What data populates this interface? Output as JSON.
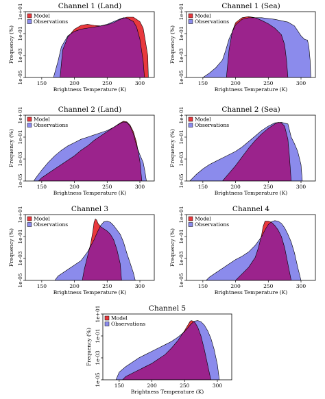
{
  "colors": {
    "model": "#e8383d",
    "observations": "#8b8bec",
    "overlap": "#9b238c",
    "outline": "#000000"
  },
  "legend_labels": [
    "Model",
    "Observations"
  ],
  "chart_data": [
    {
      "type": "area",
      "title": "Channel 1 (Land)",
      "xlabel": "Brightness Temperature (K)",
      "ylabel": "Frequency (%)",
      "xlim": [
        125,
        322
      ],
      "ylim": [
        -5,
        1
      ],
      "y_scale": "log10",
      "xticks": [
        150,
        200,
        250,
        300
      ],
      "yticks": [
        "1e-05",
        "1e-03",
        "1e-01",
        "1e+01"
      ],
      "legend": "top-left",
      "series": [
        {
          "name": "Model",
          "x": [
            178,
            182,
            190,
            200,
            210,
            220,
            230,
            240,
            250,
            260,
            270,
            280,
            290,
            300,
            305,
            308,
            312,
            313
          ],
          "log10_y": [
            -5,
            -2.5,
            -1.3,
            -0.6,
            -0.25,
            -0.15,
            -0.25,
            -0.3,
            -0.2,
            0.0,
            0.3,
            0.5,
            0.5,
            0.1,
            -0.5,
            -1.5,
            -3,
            -5
          ]
        },
        {
          "name": "Observations",
          "x": [
            168,
            175,
            180,
            190,
            200,
            210,
            220,
            230,
            240,
            250,
            260,
            270,
            275,
            280,
            290,
            295,
            300,
            305,
            307
          ],
          "log10_y": [
            -5,
            -3.5,
            -2.2,
            -1.2,
            -0.8,
            -0.6,
            -0.5,
            -0.4,
            -0.3,
            -0.15,
            0.1,
            0.35,
            0.45,
            0.42,
            0.1,
            -0.4,
            -1.5,
            -3.5,
            -5
          ]
        }
      ]
    },
    {
      "type": "area",
      "title": "Channel 1 (Sea)",
      "xlabel": "Brightness Temperature (K)",
      "ylabel": "Frequency (%)",
      "xlim": [
        125,
        322
      ],
      "ylim": [
        -5,
        1
      ],
      "y_scale": "log10",
      "xticks": [
        150,
        200,
        250,
        300
      ],
      "yticks": [
        "1e-05",
        "1e-03",
        "1e-01",
        "1e+01"
      ],
      "legend": "top-left",
      "series": [
        {
          "name": "Model",
          "x": [
            186,
            190,
            195,
            200,
            210,
            220,
            230,
            240,
            250,
            260,
            270,
            275,
            278,
            280
          ],
          "log10_y": [
            -5,
            -2.5,
            -0.8,
            0.0,
            0.45,
            0.55,
            0.45,
            0.2,
            -0.1,
            -0.5,
            -1.1,
            -2,
            -3.5,
            -5
          ]
        },
        {
          "name": "Observations",
          "x": [
            150,
            160,
            170,
            180,
            185,
            190,
            200,
            210,
            220,
            240,
            260,
            280,
            290,
            300,
            305,
            310,
            312,
            314,
            315
          ],
          "log10_y": [
            -5,
            -4.6,
            -4.1,
            -3.4,
            -2.5,
            -1.5,
            -0.2,
            0.3,
            0.45,
            0.45,
            0.3,
            0.05,
            -0.3,
            -1.2,
            -1.5,
            -1.6,
            -2.2,
            -3.5,
            -5
          ]
        }
      ]
    },
    {
      "type": "area",
      "title": "Channel 2 (Land)",
      "xlabel": "Brightness Temperature (K)",
      "ylabel": "Frequency (%)",
      "xlim": [
        125,
        322
      ],
      "ylim": [
        -5,
        1
      ],
      "y_scale": "log10",
      "xticks": [
        150,
        200,
        250,
        300
      ],
      "yticks": [
        "1e-05",
        "1e-03",
        "1e-01",
        "1e+01"
      ],
      "legend": "top-left",
      "series": [
        {
          "name": "Model",
          "x": [
            145,
            150,
            160,
            170,
            180,
            190,
            200,
            210,
            220,
            230,
            240,
            250,
            260,
            270,
            275,
            280,
            285,
            290,
            295,
            300,
            303
          ],
          "log10_y": [
            -5,
            -4.7,
            -4.3,
            -3.9,
            -3.5,
            -3.1,
            -2.7,
            -2.2,
            -1.8,
            -1.3,
            -0.9,
            -0.5,
            -0.1,
            0.3,
            0.45,
            0.4,
            0.1,
            -0.5,
            -1.5,
            -3.2,
            -5
          ]
        },
        {
          "name": "Observations",
          "x": [
            138,
            140,
            150,
            160,
            170,
            180,
            190,
            200,
            210,
            220,
            230,
            240,
            250,
            260,
            270,
            275,
            280,
            285,
            290,
            295,
            300,
            305,
            308,
            310
          ],
          "log10_y": [
            -5,
            -4.8,
            -4.0,
            -3.3,
            -2.7,
            -2.2,
            -1.8,
            -1.5,
            -1.2,
            -1.0,
            -0.8,
            -0.6,
            -0.4,
            -0.1,
            0.25,
            0.38,
            0.35,
            0.0,
            -0.7,
            -1.8,
            -2.6,
            -3.3,
            -4.2,
            -5
          ]
        }
      ]
    },
    {
      "type": "area",
      "title": "Channel 2 (Sea)",
      "xlabel": "Brightness Temperature (K)",
      "ylabel": "Frequency (%)",
      "xlim": [
        125,
        322
      ],
      "ylim": [
        -5,
        1
      ],
      "y_scale": "log10",
      "xticks": [
        150,
        200,
        250,
        300
      ],
      "yticks": [
        "1e-05",
        "1e-03",
        "1e-01",
        "1e+01"
      ],
      "legend": "top-left",
      "series": [
        {
          "name": "Model",
          "x": [
            180,
            190,
            200,
            210,
            220,
            230,
            240,
            250,
            260,
            265,
            270,
            275,
            280,
            282,
            285
          ],
          "log10_y": [
            -5,
            -4.3,
            -3.6,
            -2.8,
            -2.0,
            -1.3,
            -0.7,
            -0.2,
            0.2,
            0.35,
            0.3,
            0.0,
            -1.2,
            -2.5,
            -5
          ]
        },
        {
          "name": "Observations",
          "x": [
            130,
            135,
            140,
            150,
            160,
            170,
            180,
            190,
            200,
            210,
            220,
            230,
            240,
            250,
            260,
            270,
            280,
            285,
            290,
            295,
            300,
            302
          ],
          "log10_y": [
            -5,
            -4.7,
            -4.4,
            -3.9,
            -3.5,
            -3.2,
            -2.9,
            -2.6,
            -2.3,
            -1.9,
            -1.4,
            -0.9,
            -0.4,
            0.0,
            0.3,
            0.35,
            0.2,
            -1.0,
            -1.6,
            -2.3,
            -3.5,
            -5
          ]
        }
      ]
    },
    {
      "type": "area",
      "title": "Channel 3",
      "xlabel": "Brightness Temperature (K)",
      "ylabel": "Frequency (%)",
      "xlim": [
        125,
        322
      ],
      "ylim": [
        -5,
        1
      ],
      "y_scale": "log10",
      "xticks": [
        150,
        200,
        250,
        300
      ],
      "yticks": [
        "1e-05",
        "1e-03",
        "1e-01",
        "1e+01"
      ],
      "legend": "top-left",
      "series": [
        {
          "name": "Model",
          "x": [
            212,
            215,
            220,
            225,
            228,
            230,
            232,
            234,
            236,
            240,
            245,
            250,
            255,
            260,
            265,
            270,
            272
          ],
          "log10_y": [
            -5,
            -4.0,
            -2.8,
            -1.6,
            -0.6,
            0.3,
            0.6,
            0.5,
            0.2,
            -0.1,
            -0.3,
            -0.5,
            -0.8,
            -1.3,
            -2.2,
            -3.5,
            -5
          ]
        },
        {
          "name": "Observations",
          "x": [
            170,
            175,
            180,
            190,
            200,
            210,
            220,
            230,
            235,
            240,
            245,
            250,
            255,
            260,
            265,
            270,
            275,
            280,
            285,
            290,
            293
          ],
          "log10_y": [
            -5,
            -4.6,
            -4.4,
            -4.0,
            -3.6,
            -3.2,
            -2.4,
            -1.3,
            -0.6,
            0.0,
            0.35,
            0.4,
            0.3,
            0.0,
            -0.4,
            -0.8,
            -1.5,
            -2.5,
            -3.4,
            -4.3,
            -5
          ]
        }
      ]
    },
    {
      "type": "area",
      "title": "Channel 4",
      "xlabel": "Brightness Temperature (K)",
      "ylabel": "Frequency (%)",
      "xlim": [
        125,
        322
      ],
      "ylim": [
        -5,
        1
      ],
      "y_scale": "log10",
      "xticks": [
        150,
        200,
        250,
        300
      ],
      "yticks": [
        "1e-05",
        "1e-03",
        "1e-01",
        "1e+01"
      ],
      "legend": "top-left",
      "series": [
        {
          "name": "Model",
          "x": [
            200,
            205,
            210,
            220,
            230,
            235,
            240,
            242,
            245,
            250,
            255,
            260,
            265,
            270,
            275,
            280,
            285
          ],
          "log10_y": [
            -5,
            -4.7,
            -4.4,
            -3.8,
            -2.9,
            -2.0,
            -0.8,
            -0.1,
            0.4,
            0.4,
            0.3,
            0.0,
            -0.4,
            -1.0,
            -2.0,
            -3.5,
            -5
          ]
        },
        {
          "name": "Observations",
          "x": [
            155,
            160,
            170,
            180,
            190,
            200,
            210,
            220,
            230,
            240,
            245,
            250,
            255,
            260,
            265,
            270,
            275,
            280,
            285,
            290,
            295,
            300
          ],
          "log10_y": [
            -5,
            -4.7,
            -4.3,
            -3.9,
            -3.5,
            -3.1,
            -2.8,
            -2.4,
            -1.8,
            -1.0,
            -0.4,
            0.1,
            0.35,
            0.45,
            0.4,
            0.2,
            -0.2,
            -0.8,
            -1.5,
            -2.5,
            -3.8,
            -5
          ]
        }
      ]
    },
    {
      "type": "area",
      "title": "Channel 5",
      "xlabel": "Brightness Temperature (K)",
      "ylabel": "Frequency (%)",
      "xlim": [
        125,
        322
      ],
      "ylim": [
        -5,
        1
      ],
      "y_scale": "log10",
      "xticks": [
        150,
        200,
        250,
        300
      ],
      "yticks": [
        "1e-05",
        "1e-03",
        "1e-01",
        "1e+01"
      ],
      "legend": "top-left",
      "series": [
        {
          "name": "Model",
          "x": [
            155,
            160,
            170,
            180,
            190,
            200,
            210,
            220,
            230,
            240,
            250,
            255,
            258,
            260,
            263,
            266,
            270,
            275,
            280,
            285,
            290
          ],
          "log10_y": [
            -5,
            -4.7,
            -4.4,
            -4.1,
            -3.8,
            -3.5,
            -3.1,
            -2.7,
            -2.1,
            -1.4,
            -0.5,
            0.0,
            0.3,
            0.4,
            0.35,
            0.2,
            -0.2,
            -1.0,
            -2.2,
            -3.6,
            -5
          ]
        },
        {
          "name": "Observations",
          "x": [
            145,
            150,
            160,
            170,
            180,
            190,
            200,
            210,
            220,
            230,
            240,
            250,
            260,
            265,
            270,
            275,
            280,
            285,
            290,
            295,
            300,
            303
          ],
          "log10_y": [
            -5,
            -4.3,
            -3.8,
            -3.4,
            -3.0,
            -2.7,
            -2.4,
            -2.1,
            -1.8,
            -1.5,
            -1.1,
            -0.6,
            0.1,
            0.35,
            0.4,
            0.3,
            0.0,
            -0.5,
            -1.2,
            -2.2,
            -3.6,
            -5
          ]
        }
      ]
    }
  ]
}
